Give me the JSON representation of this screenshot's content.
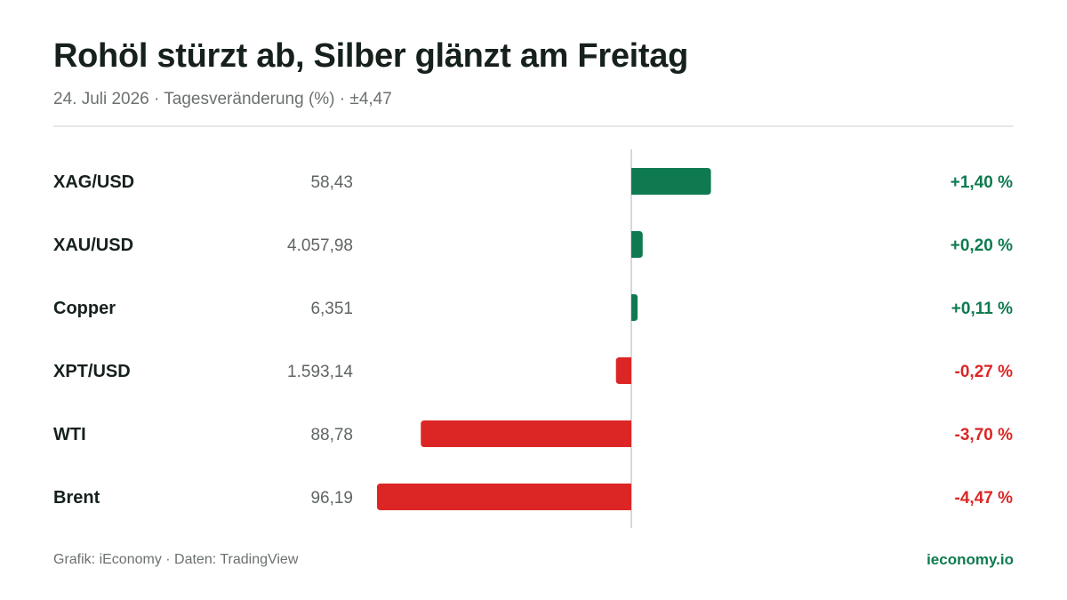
{
  "header": {
    "title": "Rohöl stürzt ab, Silber glänzt am Freitag",
    "subtitle": "24. Juli 2026 · Tagesveränderung (%) · ±4,47"
  },
  "colors": {
    "positive": "#0f7a50",
    "negative": "#dc2626",
    "axis": "#d6d9d8",
    "label": "#16211c",
    "price": "#5f6562"
  },
  "chart_data": {
    "type": "bar",
    "orientation": "horizontal",
    "categories": [
      "XAG/USD",
      "XAU/USD",
      "Copper",
      "XPT/USD",
      "WTI",
      "Brent"
    ],
    "prices": [
      "58,43",
      "4.057,98",
      "6,351",
      "1.593,14",
      "88,78",
      "96,19"
    ],
    "values": [
      1.4,
      0.2,
      0.11,
      -0.27,
      -3.7,
      -4.47
    ],
    "value_labels": [
      "+1,40 %",
      "+0,20 %",
      "+0,11 %",
      "-0,27 %",
      "-3,70 %",
      "-4,47 %"
    ],
    "xlim": [
      -4.47,
      4.47
    ],
    "title": "Rohöl stürzt ab, Silber glänzt am Freitag",
    "xlabel": "",
    "ylabel": "",
    "grid": false,
    "legend": "none"
  },
  "footer": {
    "source": "Grafik: iEconomy · Daten: TradingView",
    "brand": "ieconomy.io"
  }
}
